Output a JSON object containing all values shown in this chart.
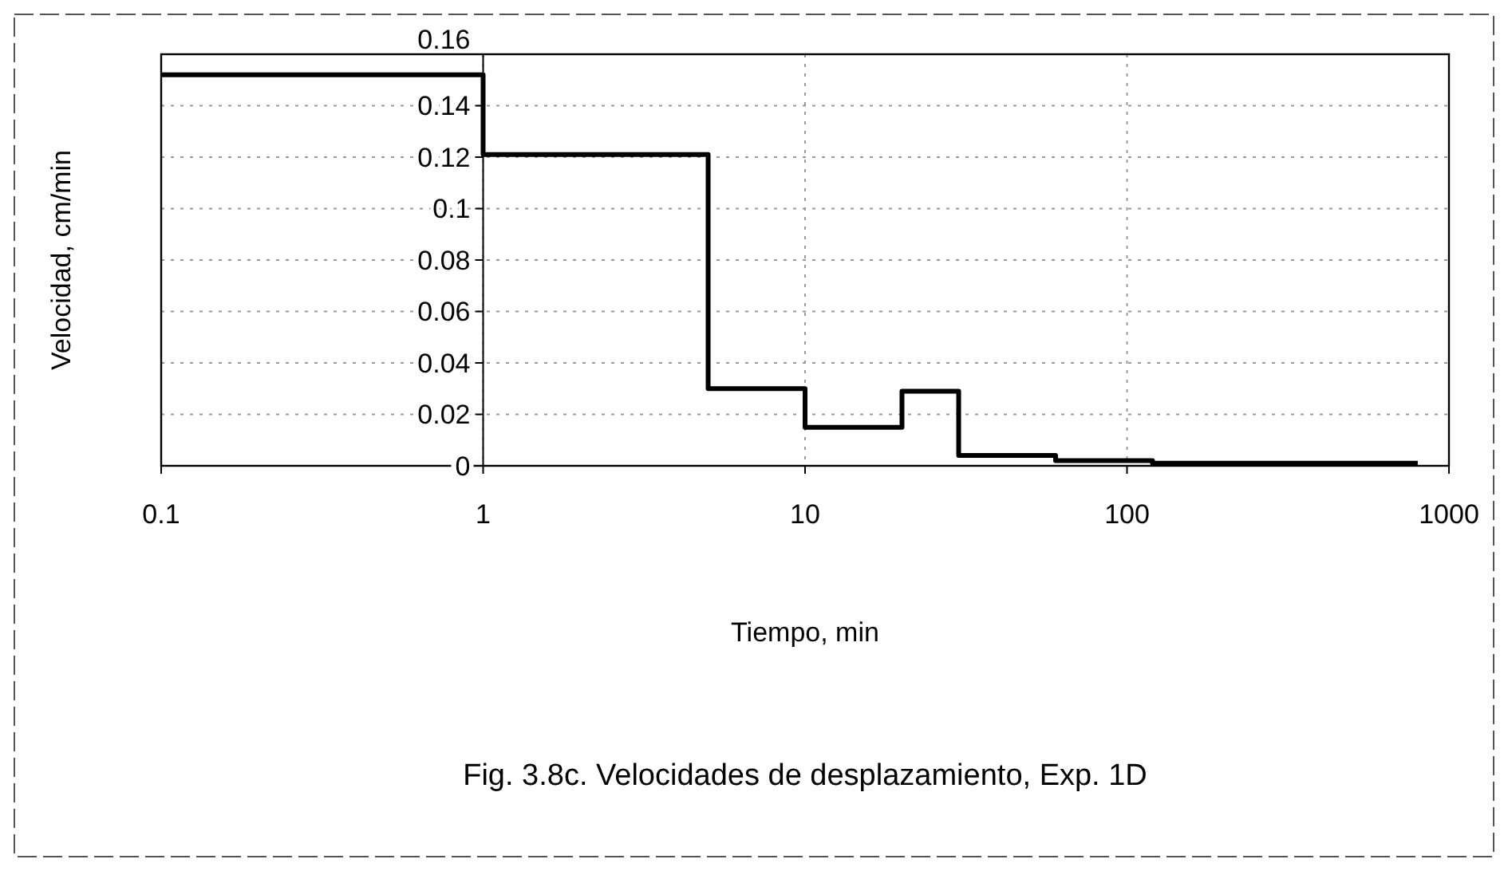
{
  "chart_data": {
    "type": "step",
    "title": "Fig. 3.8c. Velocidades de desplazamiento, Exp. 1D",
    "xlabel": "Tiempo, min",
    "ylabel": "Velocidad, cm/min",
    "x": [
      0.1,
      1,
      5,
      10,
      20,
      30,
      60,
      120,
      800
    ],
    "values": [
      0.152,
      0.121,
      0.03,
      0.015,
      0.029,
      0.004,
      0.002,
      0.001,
      0.001
    ],
    "color": "#000000",
    "log": "x",
    "xlim": [
      0.1,
      1000
    ],
    "xticks": [
      0.1,
      1,
      10,
      100,
      1000
    ],
    "ylim": [
      0,
      0.16
    ],
    "yticks": [
      0,
      0.02,
      0.04,
      0.06,
      0.08,
      0.1,
      0.12,
      0.14,
      0.16
    ],
    "grid": true,
    "line_style": "solid"
  }
}
